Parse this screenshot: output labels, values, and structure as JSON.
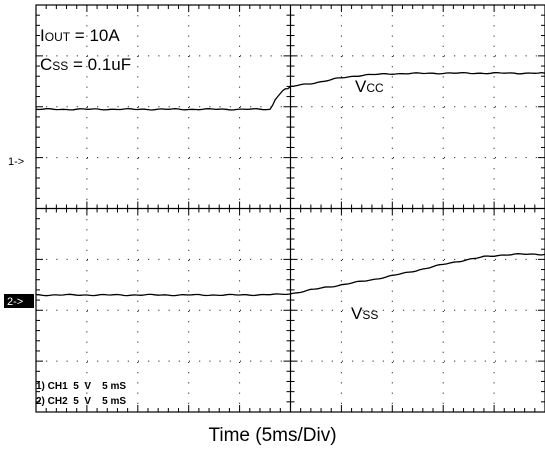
{
  "chart_data": {
    "type": "line",
    "grid": true,
    "xlabel": "Time (5ms/Div)",
    "annotations": {
      "iout": {
        "pre": "I",
        "sub": "OUT",
        "post": " = 10A"
      },
      "css": {
        "pre": "C",
        "sub": "SS",
        "post": " = 0.1uF"
      },
      "vcc": {
        "pre": "V",
        "sub": "CC",
        "post": ""
      },
      "vss": {
        "pre": "V",
        "sub": "SS",
        "post": ""
      }
    },
    "channel_markers": {
      "ch1": "1->",
      "ch2": "2->"
    },
    "channel_info": [
      "1) CH1  5  V    5 mS",
      "2) CH2  5  V    5 mS"
    ],
    "x_divisions": 10,
    "y_divisions": 8,
    "x_unit": "ms",
    "x_per_div": 5,
    "series": [
      {
        "id": "ch1",
        "offset_div": 1.95,
        "volts_per_div": 5,
        "x": [
          0,
          23,
          23.5,
          24,
          24.5,
          25,
          26,
          27,
          28,
          29,
          30,
          32,
          35,
          40,
          45,
          50
        ],
        "y": [
          0,
          0,
          0.9,
          1.6,
          2.0,
          2.2,
          2.4,
          2.55,
          2.7,
          2.9,
          3.1,
          3.35,
          3.5,
          3.55,
          3.55,
          3.55
        ]
      },
      {
        "id": "ch2",
        "offset_div": -1.7,
        "volts_per_div": 5,
        "x": [
          0,
          20,
          24,
          25,
          27,
          30,
          33,
          36,
          38,
          40,
          42,
          44,
          46,
          47,
          50
        ],
        "y": [
          0,
          0,
          0.05,
          0.12,
          0.5,
          1.0,
          1.5,
          2.1,
          2.55,
          3.0,
          3.4,
          3.75,
          3.95,
          4.0,
          4.0
        ]
      }
    ]
  }
}
